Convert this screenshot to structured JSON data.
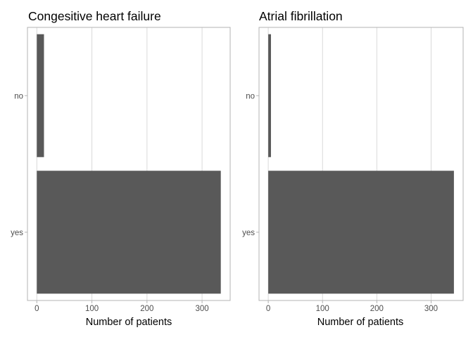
{
  "chart_data": [
    {
      "type": "bar",
      "orientation": "horizontal",
      "title": "Congesitive heart failure",
      "xlabel": "Number of patients",
      "ylabel": "",
      "categories": [
        "no",
        "yes"
      ],
      "values": [
        13,
        334
      ],
      "xlim": [
        -17,
        351
      ],
      "xticks": [
        0,
        100,
        200,
        300
      ],
      "grid": true,
      "legend": "none",
      "bar_color": "#595959"
    },
    {
      "type": "bar",
      "orientation": "horizontal",
      "title": "Atrial fibrillation",
      "xlabel": "Number of patients",
      "ylabel": "",
      "categories": [
        "no",
        "yes"
      ],
      "values": [
        5,
        342
      ],
      "xlim": [
        -17,
        359
      ],
      "xticks": [
        0,
        100,
        200,
        300
      ],
      "grid": true,
      "legend": "none",
      "bar_color": "#595959"
    }
  ]
}
